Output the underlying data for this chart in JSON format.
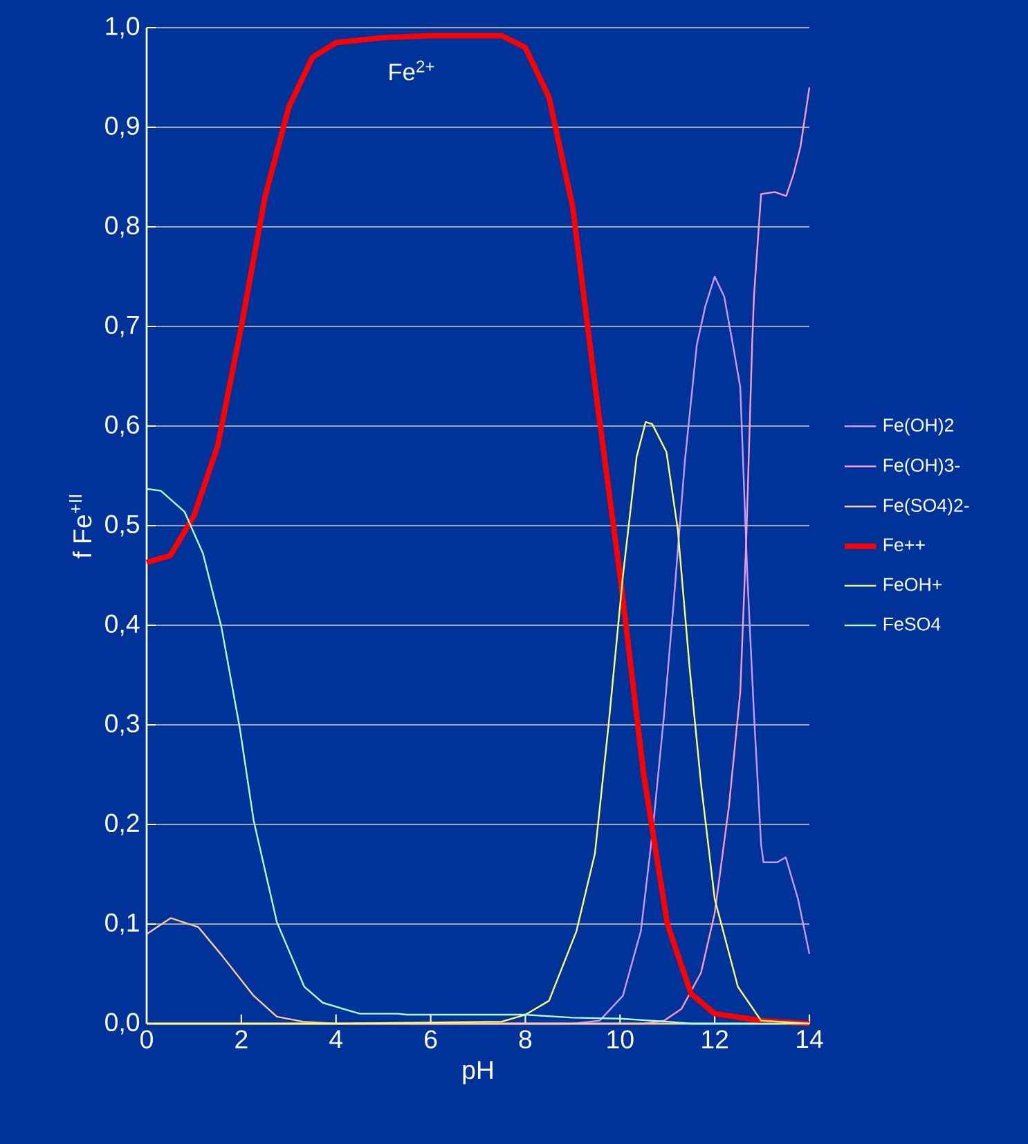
{
  "chart_data": {
    "type": "line",
    "xlabel": "pH",
    "ylabel": "f Fe$^{+II}$",
    "xlim": [
      0,
      14
    ],
    "ylim": [
      0,
      1
    ],
    "xticks": [
      0,
      2,
      4,
      6,
      8,
      10,
      12,
      14
    ],
    "yticks": [
      {
        "value": 0,
        "label": "0,0"
      },
      {
        "value": 0.1,
        "label": "0,1"
      },
      {
        "value": 0.2,
        "label": "0,2"
      },
      {
        "value": 0.3,
        "label": "0,3"
      },
      {
        "value": 0.4,
        "label": "0,4"
      },
      {
        "value": 0.5,
        "label": "0,5"
      },
      {
        "value": 0.6,
        "label": "0,6"
      },
      {
        "value": 0.7,
        "label": "0,7"
      },
      {
        "value": 0.8,
        "label": "0,8"
      },
      {
        "value": 0.9,
        "label": "0,9"
      },
      {
        "value": 1.0,
        "label": "1,0"
      }
    ],
    "grid": "y",
    "legend": "right",
    "marker": "none",
    "annotations": [
      "Fe$^{2+}$"
    ],
    "series": [
      {
        "name": "Fe(OH)2",
        "color": "#cc99ff",
        "x": [
          0,
          9,
          9.57,
          10.06,
          10.44,
          10.69,
          10.93,
          11.13,
          11.37,
          11.62,
          11.8,
          12.0,
          12.2,
          12.39,
          12.54,
          12.69,
          12.83,
          12.98,
          13.03,
          13.32,
          13.5,
          13.76,
          14.0
        ],
        "values": [
          0,
          0,
          0.003,
          0.028,
          0.093,
          0.194,
          0.31,
          0.421,
          0.565,
          0.681,
          0.72,
          0.75,
          0.73,
          0.68,
          0.639,
          0.449,
          0.31,
          0.18,
          0.162,
          0.162,
          0.167,
          0.125,
          0.07
        ]
      },
      {
        "name": "Fe(OH)3-",
        "color": "#ff99cc",
        "x": [
          0,
          10.5,
          10.93,
          11.3,
          11.71,
          12.0,
          12.3,
          12.54,
          12.67,
          12.79,
          12.83,
          12.98,
          13.27,
          13.51,
          13.66,
          13.81,
          14.0
        ],
        "values": [
          0,
          0,
          0.003,
          0.015,
          0.051,
          0.111,
          0.218,
          0.333,
          0.491,
          0.681,
          0.731,
          0.833,
          0.835,
          0.831,
          0.852,
          0.88,
          0.94
        ]
      },
      {
        "name": "Fe(SO4)2-",
        "color": "#ffcc99",
        "x": [
          0,
          0.51,
          1.09,
          1.58,
          2.26,
          2.75,
          3.3,
          4,
          14
        ],
        "values": [
          0.09,
          0.106,
          0.097,
          0.069,
          0.028,
          0.007,
          0.002,
          0,
          0
        ]
      },
      {
        "name": "Fe++",
        "color": "#ff0000",
        "x": [
          0,
          0.5,
          1.0,
          1.5,
          2.0,
          2.5,
          3.0,
          3.5,
          4.0,
          5.0,
          6.0,
          7.5,
          8.0,
          8.5,
          9.0,
          9.5,
          10.0,
          10.5,
          11.0,
          11.5,
          12.0,
          13.0,
          14.0
        ],
        "values": [
          0.463,
          0.47,
          0.51,
          0.58,
          0.7,
          0.83,
          0.92,
          0.97,
          0.985,
          0.99,
          0.992,
          0.992,
          0.98,
          0.93,
          0.82,
          0.63,
          0.45,
          0.25,
          0.1,
          0.03,
          0.01,
          0.003,
          0
        ]
      },
      {
        "name": "FeOH+",
        "color": "#ffff66",
        "x": [
          0,
          4,
          7.5,
          8.0,
          8.5,
          9.08,
          9.47,
          9.76,
          10.06,
          10.35,
          10.54,
          10.68,
          10.98,
          11.22,
          11.47,
          11.71,
          12.0,
          12.49,
          12.98,
          14.0
        ],
        "values": [
          0,
          0,
          0.002,
          0.009,
          0.023,
          0.093,
          0.171,
          0.301,
          0.449,
          0.569,
          0.604,
          0.602,
          0.574,
          0.496,
          0.357,
          0.241,
          0.125,
          0.037,
          0.003,
          0
        ]
      },
      {
        "name": "FeSO4",
        "color": "#aaffcc",
        "x": [
          0,
          0.3,
          0.8,
          1.19,
          1.58,
          1.97,
          2.26,
          2.75,
          3.33,
          3.72,
          4.5,
          5.3,
          5.5,
          8.0,
          9.0,
          10.0,
          11.0,
          11.5,
          14.0
        ],
        "values": [
          0.537,
          0.535,
          0.514,
          0.472,
          0.398,
          0.296,
          0.204,
          0.102,
          0.037,
          0.021,
          0.01,
          0.01,
          0.009,
          0.009,
          0.006,
          0.005,
          0.002,
          0,
          0
        ]
      }
    ]
  }
}
